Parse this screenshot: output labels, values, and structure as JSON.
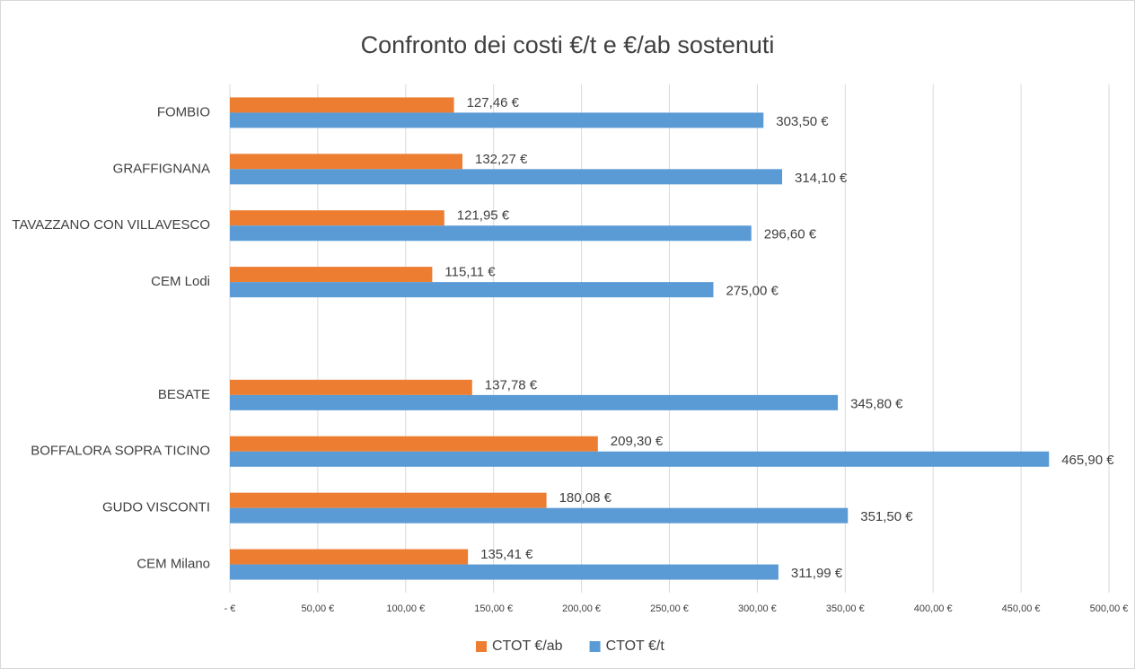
{
  "chart_data": {
    "type": "hbar",
    "title": "Confronto dei costi €/t e €/ab sostenuti",
    "categories": [
      "FOMBIO",
      "GRAFFIGNANA",
      "TAVAZZANO CON VILLAVESCO",
      "CEM Lodi",
      null,
      "BESATE",
      "BOFFALORA SOPRA TICINO",
      "GUDO VISCONTI",
      "CEM Milano"
    ],
    "series": [
      {
        "name": "CTOT €/ab",
        "color": "#ed7d31",
        "values": [
          127.46,
          132.27,
          121.95,
          115.11,
          null,
          137.78,
          209.3,
          180.08,
          135.41
        ],
        "value_labels": [
          "127,46 €",
          "132,27 €",
          "121,95 €",
          "115,11 €",
          null,
          "137,78 €",
          "209,30 €",
          "180,08 €",
          "135,41 €"
        ]
      },
      {
        "name": "CTOT €/t",
        "color": "#5b9bd5",
        "values": [
          303.5,
          314.1,
          296.6,
          275.0,
          null,
          345.8,
          465.9,
          351.5,
          311.99
        ],
        "value_labels": [
          "303,50 €",
          "314,10 €",
          "296,60 €",
          "275,00 €",
          null,
          "345,80 €",
          "465,90 €",
          "351,50 €",
          "311,99 €"
        ]
      }
    ],
    "xlim": [
      0,
      500
    ],
    "xticks": [
      {
        "value": 0,
        "label": "-  €"
      },
      {
        "value": 50,
        "label": "50,00 €"
      },
      {
        "value": 100,
        "label": "100,00 €"
      },
      {
        "value": 150,
        "label": "150,00 €"
      },
      {
        "value": 200,
        "label": "200,00 €"
      },
      {
        "value": 250,
        "label": "250,00 €"
      },
      {
        "value": 300,
        "label": "300,00 €"
      },
      {
        "value": 350,
        "label": "350,00 €"
      },
      {
        "value": 400,
        "label": "400,00 €"
      },
      {
        "value": 450,
        "label": "450,00 €"
      },
      {
        "value": 500,
        "label": "500,00 €"
      }
    ],
    "grid": true,
    "legend": "bottom"
  }
}
